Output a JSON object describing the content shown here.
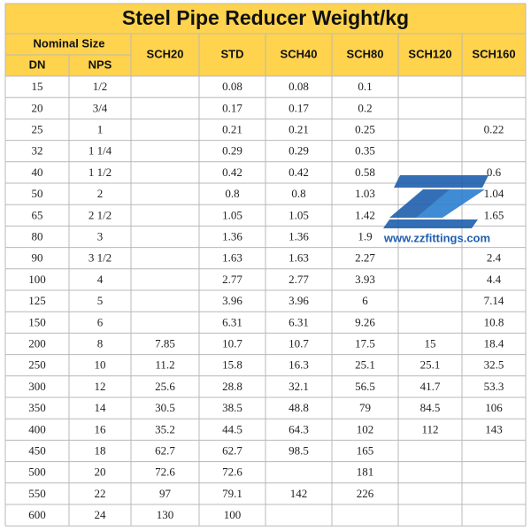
{
  "title": "Steel Pipe Reducer Weight/kg",
  "table": {
    "group_header": "Nominal Size",
    "sub_headers": [
      "DN",
      "NPS"
    ],
    "schedule_headers": [
      "SCH20",
      "STD",
      "SCH40",
      "SCH80",
      "SCH120",
      "SCH160"
    ],
    "rows": [
      [
        "15",
        "1/2",
        null,
        "0.08",
        "0.08",
        "0.1",
        null,
        null
      ],
      [
        "20",
        "3/4",
        null,
        "0.17",
        "0.17",
        "0.2",
        null,
        null
      ],
      [
        "25",
        "1",
        null,
        "0.21",
        "0.21",
        "0.25",
        null,
        "0.22"
      ],
      [
        "32",
        "1 1/4",
        null,
        "0.29",
        "0.29",
        "0.35",
        null,
        null
      ],
      [
        "40",
        "1 1/2",
        null,
        "0.42",
        "0.42",
        "0.58",
        null,
        "0.6"
      ],
      [
        "50",
        "2",
        null,
        "0.8",
        "0.8",
        "1.03",
        null,
        "1.04"
      ],
      [
        "65",
        "2 1/2",
        null,
        "1.05",
        "1.05",
        "1.42",
        null,
        "1.65"
      ],
      [
        "80",
        "3",
        null,
        "1.36",
        "1.36",
        "1.9",
        null,
        null
      ],
      [
        "90",
        "3 1/2",
        null,
        "1.63",
        "1.63",
        "2.27",
        null,
        "2.4"
      ],
      [
        "100",
        "4",
        null,
        "2.77",
        "2.77",
        "3.93",
        null,
        "4.4"
      ],
      [
        "125",
        "5",
        null,
        "3.96",
        "3.96",
        "6",
        null,
        "7.14"
      ],
      [
        "150",
        "6",
        null,
        "6.31",
        "6.31",
        "9.26",
        null,
        "10.8"
      ],
      [
        "200",
        "8",
        "7.85",
        "10.7",
        "10.7",
        "17.5",
        "15",
        "18.4"
      ],
      [
        "250",
        "10",
        "11.2",
        "15.8",
        "16.3",
        "25.1",
        "25.1",
        "32.5"
      ],
      [
        "300",
        "12",
        "25.6",
        "28.8",
        "32.1",
        "56.5",
        "41.7",
        "53.3"
      ],
      [
        "350",
        "14",
        "30.5",
        "38.5",
        "48.8",
        "79",
        "84.5",
        "106"
      ],
      [
        "400",
        "16",
        "35.2",
        "44.5",
        "64.3",
        "102",
        "112",
        "143"
      ],
      [
        "450",
        "18",
        "62.7",
        "62.7",
        "98.5",
        "165",
        null,
        null
      ],
      [
        "500",
        "20",
        "72.6",
        "72.6",
        null,
        "181",
        null,
        null
      ],
      [
        "550",
        "22",
        "97",
        "79.1",
        "142",
        "226",
        null,
        null
      ],
      [
        "600",
        "24",
        "130",
        "100",
        null,
        null,
        null,
        null
      ]
    ]
  },
  "watermark": {
    "url": "www.zzfittings.com"
  }
}
